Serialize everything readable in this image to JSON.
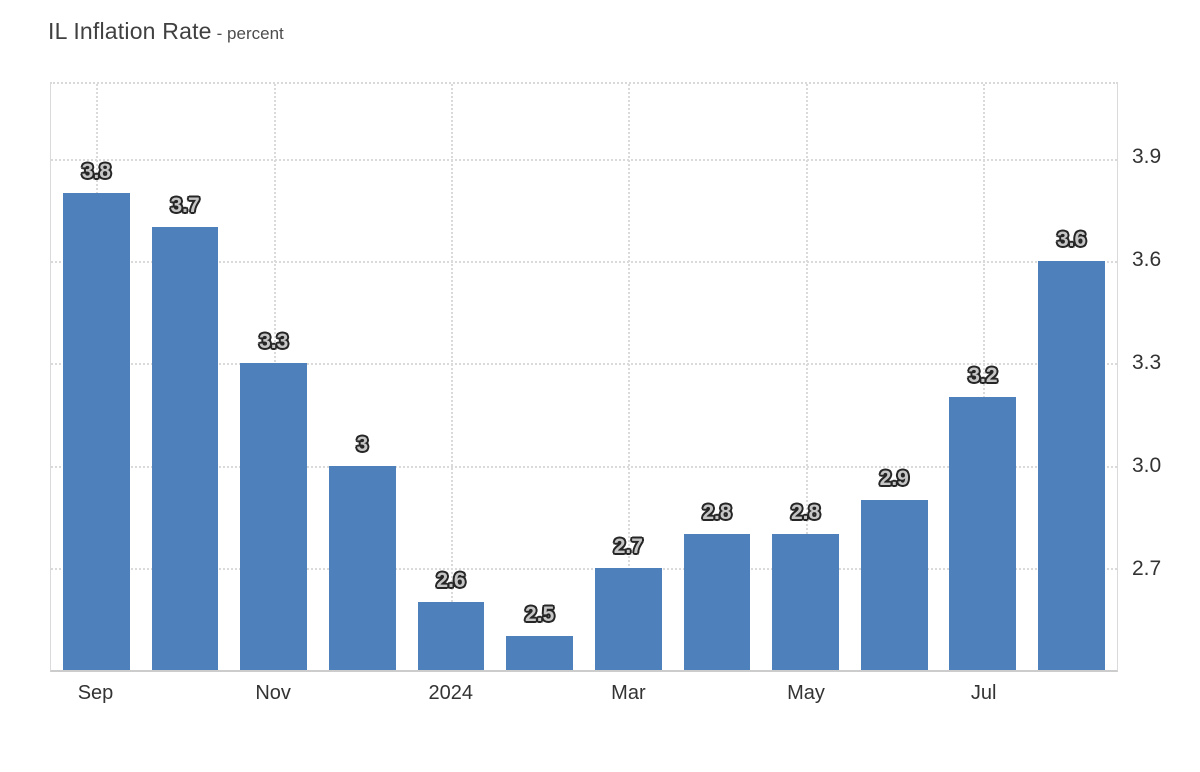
{
  "header": {
    "title": "IL Inflation Rate",
    "subtitle": "- percent"
  },
  "chart_data": {
    "type": "bar",
    "title": "IL Inflation Rate",
    "unit_label": "percent",
    "values": [
      3.8,
      3.7,
      3.3,
      3.0,
      2.6,
      2.5,
      2.7,
      2.8,
      2.8,
      2.9,
      3.2,
      3.6
    ],
    "bar_value_labels": [
      "3.8",
      "3.7",
      "3.3",
      "3",
      "2.6",
      "2.5",
      "2.7",
      "2.8",
      "2.8",
      "2.9",
      "3.2",
      "3.6"
    ],
    "x_tick_labels": [
      "Sep",
      "Nov",
      "2024",
      "Mar",
      "May",
      "Jul"
    ],
    "x_tick_bar_indices": [
      0,
      2,
      4,
      6,
      8,
      10
    ],
    "y_tick_values": [
      3.9,
      3.6,
      3.3,
      3.0,
      2.7
    ],
    "y_tick_labels": [
      "3.9",
      "3.6",
      "3.3",
      "3.0",
      "2.7"
    ],
    "ylim": [
      2.4,
      4.12
    ],
    "grid": "dotted",
    "y_axis_position": "right",
    "legend": "none",
    "colors": {
      "bar_fill": "#4e80bc",
      "gridline": "#dadada",
      "axis_line": "#cccccc",
      "tick_text": "#333333",
      "bar_label_fill": "#c6c6c6",
      "bar_label_outline": "#262626",
      "title_text": "#404040"
    }
  }
}
